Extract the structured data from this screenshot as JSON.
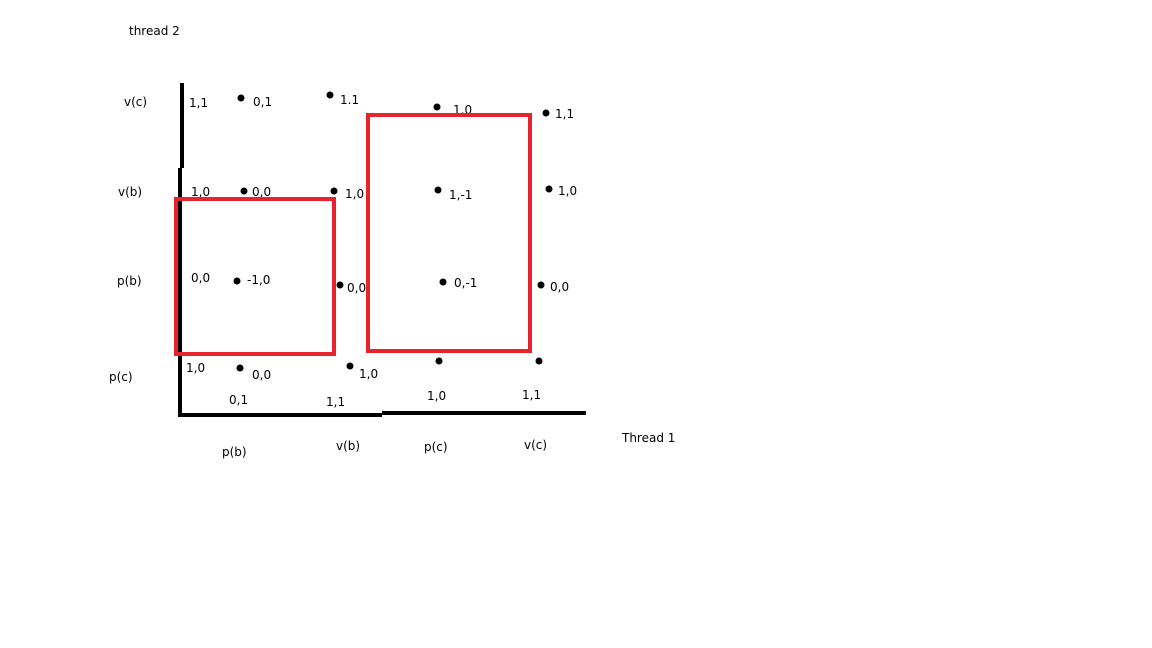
{
  "diagram": {
    "axis_title_y": "thread 2",
    "axis_title_x": "Thread 1",
    "row_labels": [
      "v(c)",
      "v(b)",
      "p(b)",
      "p(c)"
    ],
    "column_labels": [
      "p(b)",
      "v(b)",
      "p(c)",
      "v(c)"
    ],
    "bottom_values": [
      "0,1",
      "1,1",
      "1,0",
      "1,1"
    ],
    "left_values": [
      "1,1",
      "1,0",
      "0,0",
      "1,0"
    ],
    "point_labels": {
      "row_vc": [
        "0,1",
        "1.1",
        "1,0",
        "1,1"
      ],
      "row_vb": [
        "0,0",
        "1,0",
        "1,-1",
        "1,0"
      ],
      "row_pb": [
        "-1,0",
        "0,0",
        "0,-1",
        "0,0"
      ],
      "row_pc": [
        "0,0",
        "1,0",
        "",
        ""
      ]
    },
    "colors": {
      "axis": "#000000",
      "point": "#000000",
      "highlight_box": "#e8232b"
    }
  }
}
